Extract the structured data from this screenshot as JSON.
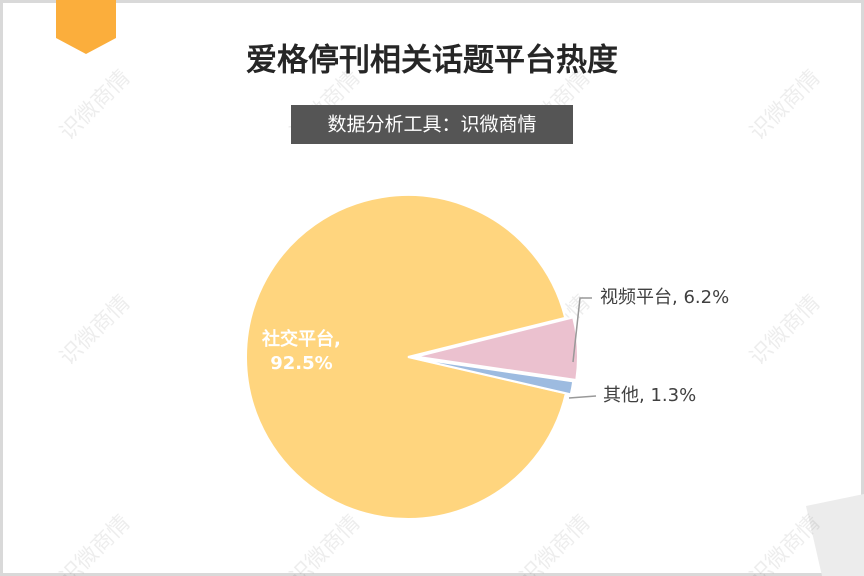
{
  "chart_data": {
    "type": "pie",
    "title": "爱格停刊相关话题平台热度",
    "subtitle": "数据分析工具：识微商情",
    "categories": [
      "社交平台",
      "视频平台",
      "其他"
    ],
    "values": [
      92.5,
      6.2,
      1.3
    ],
    "value_labels": [
      "92.5%",
      "6.2%",
      "1.3%"
    ],
    "colors": [
      "#FFD57E",
      "#EBC1CF",
      "#9DBBE0"
    ]
  },
  "watermark": "识微商情"
}
